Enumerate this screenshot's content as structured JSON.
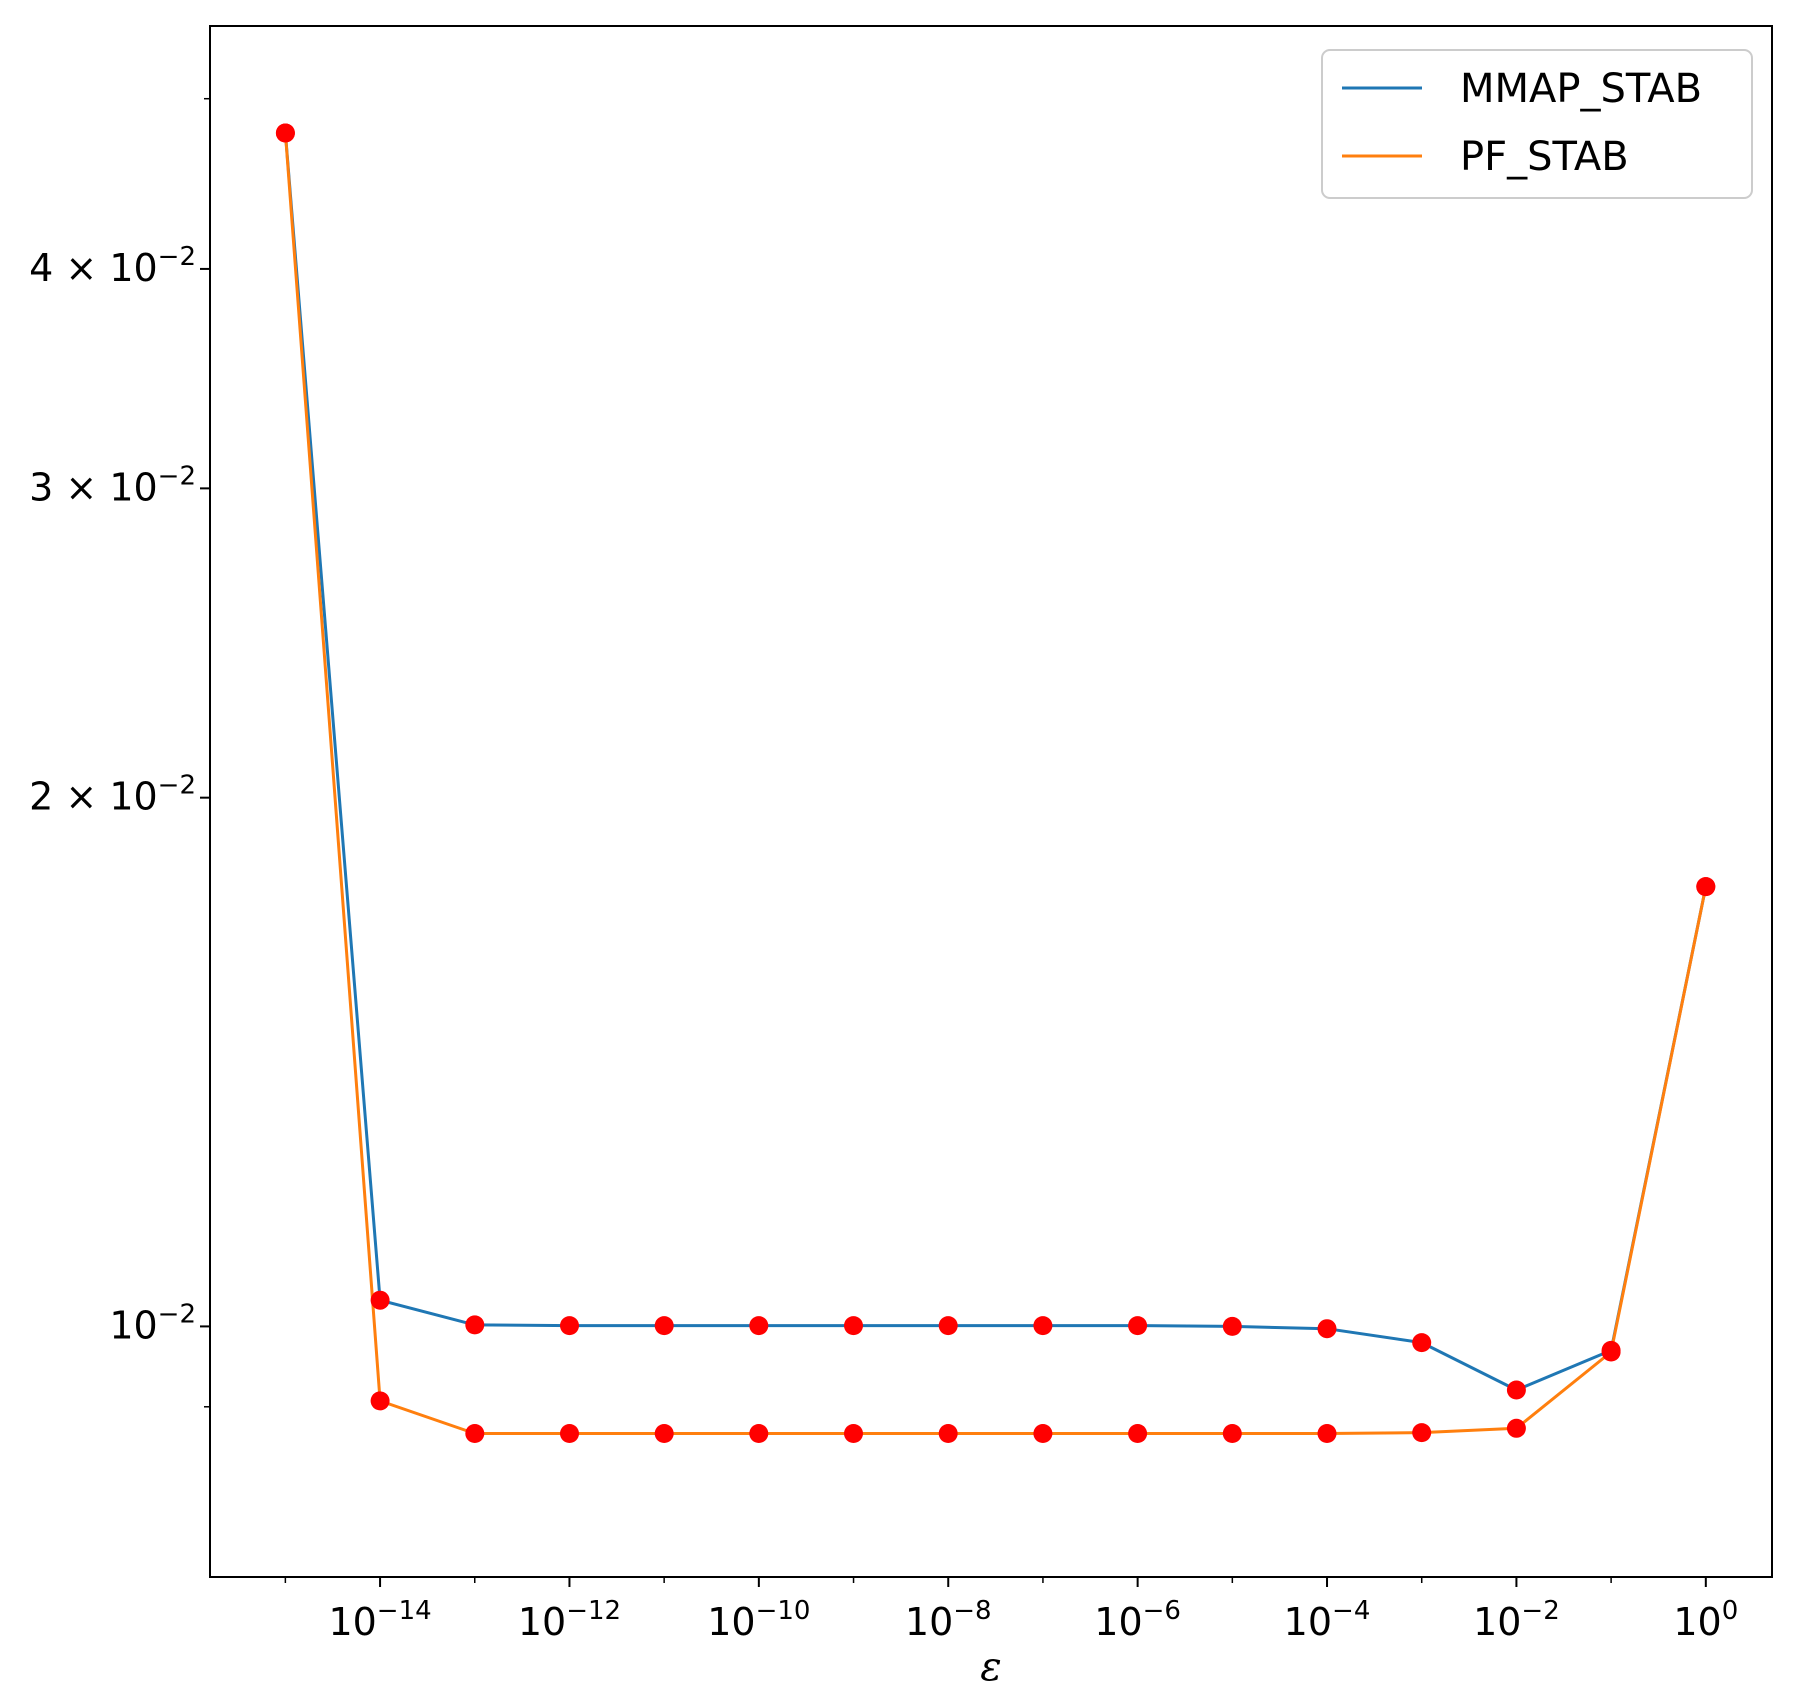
{
  "chart_data": {
    "type": "line",
    "title": "",
    "xlabel": "ε",
    "ylabel": "",
    "xscale": "log",
    "yscale": "log",
    "xlim": [
      1.6e-16,
      5.0
    ],
    "ylim": [
      0.0072,
      0.055
    ],
    "x": [
      1e-15,
      1e-14,
      1e-13,
      1e-12,
      1e-11,
      1e-10,
      1e-09,
      1e-08,
      1e-07,
      1e-06,
      1e-05,
      0.0001,
      0.001,
      0.01,
      0.1,
      1
    ],
    "series": [
      {
        "name": "MMAP_STAB",
        "color": "#1f77b4",
        "values": [
          0.0478,
          0.01035,
          0.01002,
          0.01001,
          0.01001,
          0.01001,
          0.01001,
          0.01001,
          0.01001,
          0.01001,
          0.01,
          0.00997,
          0.00979,
          0.0092,
          0.00969,
          0.0178
        ]
      },
      {
        "name": "PF_STAB",
        "color": "#ff7f0e",
        "values": [
          0.0478,
          0.00907,
          0.00869,
          0.00869,
          0.00869,
          0.00869,
          0.00869,
          0.00869,
          0.00869,
          0.00869,
          0.00869,
          0.00869,
          0.0087,
          0.00875,
          0.00967,
          0.0178
        ]
      }
    ],
    "marker_color": "#ff0000",
    "x_ticks": [
      {
        "value": 1e-14,
        "base": "10",
        "exp": "−14"
      },
      {
        "value": 1e-12,
        "base": "10",
        "exp": "−12"
      },
      {
        "value": 1e-10,
        "base": "10",
        "exp": "−10"
      },
      {
        "value": 1e-08,
        "base": "10",
        "exp": "−8"
      },
      {
        "value": 1e-06,
        "base": "10",
        "exp": "−6"
      },
      {
        "value": 0.0001,
        "base": "10",
        "exp": "−4"
      },
      {
        "value": 0.01,
        "base": "10",
        "exp": "−2"
      },
      {
        "value": 1,
        "base": "10",
        "exp": "0"
      }
    ],
    "x_minor_ticks": [
      1e-15,
      1e-13,
      1e-11,
      1e-09,
      1e-07,
      1e-05,
      0.001,
      0.1
    ],
    "y_ticks": [
      {
        "value": 0.01,
        "base": "10",
        "exp": "−2"
      },
      {
        "value": 0.02,
        "base": "2 × 10",
        "exp": "−2"
      },
      {
        "value": 0.03,
        "base": "3 × 10",
        "exp": "−2"
      },
      {
        "value": 0.04,
        "base": "4 × 10",
        "exp": "−2"
      }
    ],
    "y_minor_ticks": [
      0.009,
      0.05
    ],
    "legend": {
      "position": "top-right",
      "entries": [
        "MMAP_STAB",
        "PF_STAB"
      ]
    },
    "grid": false
  }
}
